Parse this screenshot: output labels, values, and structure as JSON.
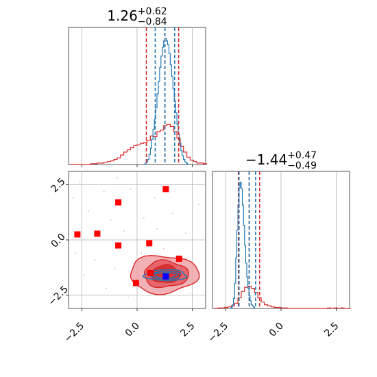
{
  "colors": {
    "red": "#d62728",
    "blue": "#1f77b4",
    "grid": "#b0b0b0"
  },
  "chart_data": {
    "type": "corner",
    "axis_range": [
      -3.1,
      3.1
    ],
    "ticks": [
      -2.5,
      0.0,
      2.5
    ],
    "tick_labels": [
      "−2.5",
      "0.0",
      "2.5"
    ],
    "grid": true,
    "panels": [
      {
        "id": "param1-histogram",
        "type": "histogram",
        "title_main": "1.26",
        "title_sup": "+0.62",
        "title_sub": "−0.84",
        "red_quantiles": [
          0.42,
          1.26,
          1.88
        ],
        "blue_quantiles": [
          0.82,
          1.26,
          1.7
        ],
        "red_peak": 0.58,
        "blue_peak": 1.0,
        "red_hist": {
          "start": -3.0,
          "width": 0.15,
          "counts": [
            0,
            0,
            0,
            0,
            0,
            0,
            0.01,
            0.01,
            0.02,
            0.02,
            0.03,
            0.04,
            0.05,
            0.07,
            0.09,
            0.13,
            0.17,
            0.2,
            0.23,
            0.26,
            0.27,
            0.29,
            0.3,
            0.33,
            0.39,
            0.38,
            0.45,
            0.47,
            0.53,
            0.55,
            0.52,
            0.45,
            0.36,
            0.25,
            0.17,
            0.1,
            0.06,
            0.04,
            0.02,
            0.02,
            0.01
          ]
        },
        "blue_hist": {
          "start": 0.3,
          "width": 0.06,
          "counts": [
            0,
            0.01,
            0.02,
            0.04,
            0.08,
            0.13,
            0.2,
            0.28,
            0.36,
            0.45,
            0.56,
            0.66,
            0.77,
            0.86,
            0.93,
            0.98,
            1.0,
            0.98,
            0.95,
            0.88,
            0.79,
            0.7,
            0.6,
            0.5,
            0.41,
            0.32,
            0.24,
            0.17,
            0.11,
            0.07,
            0.04,
            0.02,
            0.01,
            0
          ]
        }
      },
      {
        "id": "param2-histogram",
        "type": "histogram",
        "title_main": "−1.44",
        "title_sup": "+0.47",
        "title_sub": "−0.49",
        "red_quantiles": [
          -1.93,
          -1.44,
          -0.97
        ],
        "blue_quantiles": [
          -1.9,
          -1.44,
          -1.15
        ],
        "red_peak": 0.42,
        "blue_peak": 1.0,
        "red_hist": {
          "start": -3.0,
          "width": 0.15,
          "counts": [
            0,
            0.01,
            0.01,
            0.02,
            0.03,
            0.05,
            0.1,
            0.2,
            0.32,
            0.4,
            0.42,
            0.38,
            0.3,
            0.2,
            0.12,
            0.07,
            0.05,
            0.03,
            0.02,
            0.02,
            0.01,
            0.01,
            0,
            0,
            0,
            0,
            0,
            0,
            0,
            0,
            0,
            0,
            0,
            0,
            0.01,
            0,
            0.01,
            0,
            0.01,
            0,
            0
          ]
        },
        "blue_hist": {
          "start": -2.3,
          "width": 0.05,
          "counts": [
            0,
            0.01,
            0.03,
            0.08,
            0.2,
            0.4,
            0.62,
            0.82,
            0.96,
            1.0,
            0.95,
            0.82,
            0.66,
            0.5,
            0.36,
            0.25,
            0.16,
            0.1,
            0.06,
            0.03,
            0.02,
            0.01,
            0
          ]
        }
      },
      {
        "id": "joint-scatter",
        "type": "scatter-contour",
        "red_center": [
          1.3,
          -1.55
        ],
        "blue_center": [
          1.3,
          -1.6
        ],
        "red_contour_levels": [
          [
            1.55,
            0.85
          ],
          [
            1.0,
            0.6
          ],
          [
            0.65,
            0.4
          ]
        ],
        "blue_contour_levels": [
          [
            0.95,
            0.25
          ],
          [
            0.7,
            0.18
          ],
          [
            0.5,
            0.12
          ]
        ],
        "red_markers": [
          [
            -2.7,
            0.25
          ],
          [
            -1.8,
            0.28
          ],
          [
            -0.85,
            1.7
          ],
          [
            1.3,
            2.3
          ],
          [
            -0.85,
            -0.25
          ],
          [
            0.55,
            -0.15
          ],
          [
            1.9,
            -0.85
          ],
          [
            -0.05,
            -1.95
          ],
          [
            0.6,
            -1.5
          ]
        ],
        "blue_marker": [
          1.3,
          -1.65
        ],
        "scatter_points": [
          [
            -2.6,
            2.6
          ],
          [
            -1.5,
            2.2
          ],
          [
            -0.3,
            2.3
          ],
          [
            0.8,
            1.9
          ],
          [
            -2.2,
            1.3
          ],
          [
            -1.2,
            0.9
          ],
          [
            0.3,
            1.0
          ],
          [
            1.6,
            1.2
          ],
          [
            -2.8,
            -0.6
          ],
          [
            -1.9,
            -0.9
          ],
          [
            -0.6,
            0.4
          ],
          [
            0.9,
            0.5
          ],
          [
            2.2,
            0.3
          ],
          [
            -2.4,
            -1.6
          ],
          [
            -1.4,
            -2.2
          ],
          [
            -0.4,
            -2.6
          ],
          [
            0.6,
            -2.4
          ],
          [
            1.7,
            -2.3
          ],
          [
            2.6,
            -1.2
          ],
          [
            2.4,
            -2.4
          ],
          [
            -1.0,
            -1.3
          ],
          [
            0.2,
            -0.6
          ],
          [
            1.2,
            -0.4
          ],
          [
            -2.9,
            1.9
          ],
          [
            -0.9,
            2.8
          ],
          [
            2.8,
            1.6
          ]
        ]
      }
    ]
  }
}
